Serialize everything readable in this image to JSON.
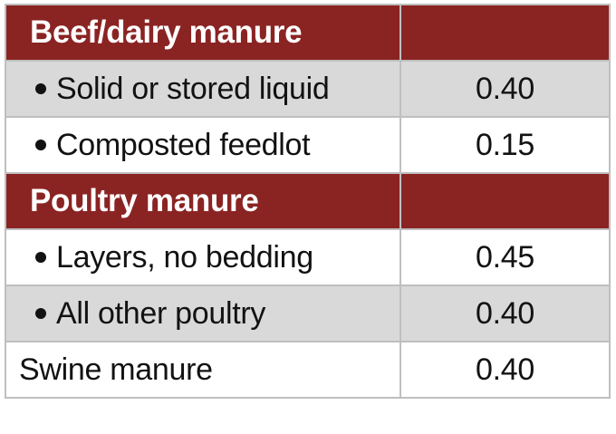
{
  "theme": {
    "maroon": "#8a2423",
    "maroon_text": "#ffffff",
    "gray_row": "#d9d9d9",
    "white_row": "#ffffff",
    "border": "#bfbfbf",
    "text": "#121212",
    "page_bg": "#ffffff"
  },
  "table": {
    "description": "Two-column table of manure types and availability coefficients",
    "rows": [
      {
        "type": "section",
        "label": "Beef/dairy manure",
        "value": ""
      },
      {
        "type": "item",
        "bullet": true,
        "shade": "gray",
        "label": "Solid or stored liquid",
        "value": "0.40"
      },
      {
        "type": "item",
        "bullet": true,
        "shade": "white",
        "label": "Composted feedlot",
        "value": "0.15"
      },
      {
        "type": "section",
        "label": "Poultry manure",
        "value": ""
      },
      {
        "type": "item",
        "bullet": true,
        "shade": "white",
        "label": "Layers, no bedding",
        "value": "0.45"
      },
      {
        "type": "item",
        "bullet": true,
        "shade": "gray",
        "label": "All other poultry",
        "value": "0.40"
      },
      {
        "type": "item",
        "bullet": false,
        "shade": "white",
        "label": "Swine manure",
        "value": "0.40"
      }
    ]
  }
}
